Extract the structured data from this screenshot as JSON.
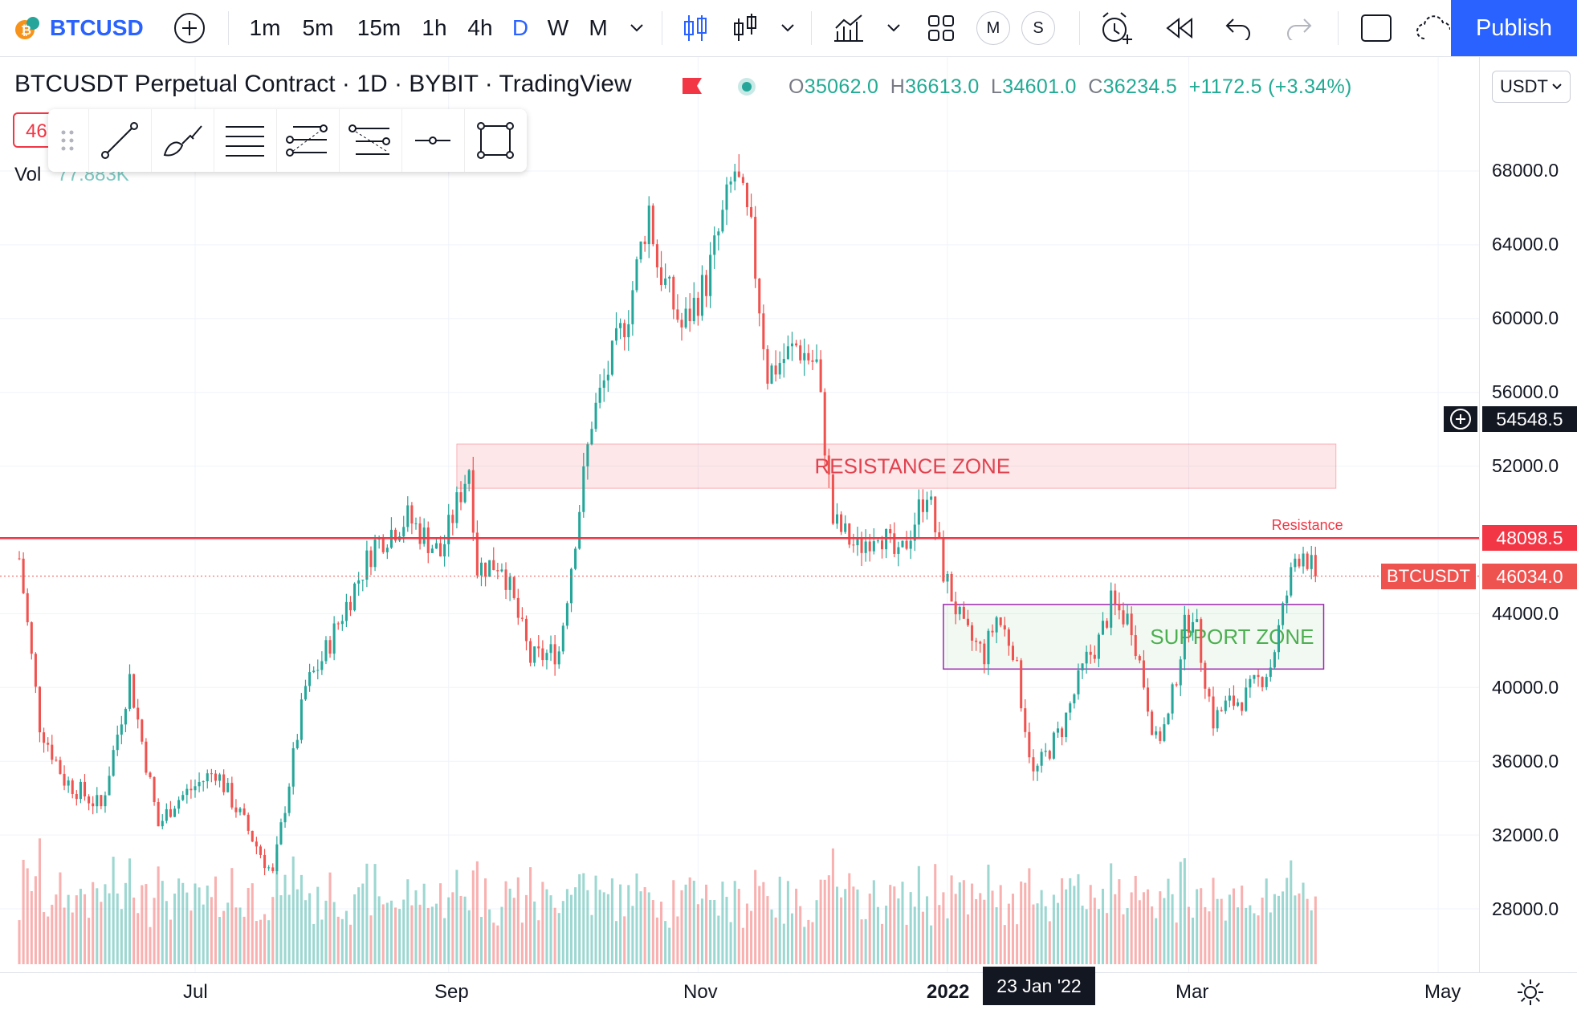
{
  "toolbar": {
    "symbol": "BTCUSD",
    "intervals": [
      "1m",
      "5m",
      "15m",
      "1h",
      "4h",
      "D",
      "W",
      "M"
    ],
    "active_interval": "D",
    "compare_m": "M",
    "compare_s": "S",
    "publish_label": "Publish"
  },
  "legend": {
    "title": "BTCUSDT Perpetual Contract · 1D · BYBIT · TradingView",
    "open_label": "O",
    "open": "35062.0",
    "high_label": "H",
    "high": "36613.0",
    "low_label": "L",
    "low": "34601.0",
    "close_label": "C",
    "close": "36234.5",
    "change": "+1172.5 (+3.34%)",
    "vol_label": "Vol",
    "vol_value": "77.883K",
    "input_value": "46"
  },
  "currency_select": "USDT",
  "price_axis": {
    "ticks": [
      "68000.0",
      "64000.0",
      "60000.0",
      "56000.0",
      "52000.0",
      "44000.0",
      "40000.0",
      "36000.0",
      "32000.0",
      "28000.0"
    ],
    "crosshair_price": "54548.5",
    "resistance_price": "48098.5",
    "last_price": "46034.0",
    "last_symbol": "BTCUSDT"
  },
  "time_axis": {
    "labels": [
      "Jul",
      "Sep",
      "Nov",
      "2022",
      "Mar",
      "May"
    ],
    "crosshair_date": "23 Jan '22"
  },
  "annotations": {
    "resistance_zone": "RESISTANCE ZONE",
    "support_zone": "SUPPORT ZONE",
    "resistance_line_label": "Resistance"
  },
  "colors": {
    "up": "#26a69a",
    "down": "#ef5350",
    "accent": "#2962ff",
    "resistance_line": "#f23645",
    "support_box": "#9c27b0"
  },
  "chart_data": {
    "type": "candlestick",
    "ylim": [
      26000,
      70000
    ],
    "keypoints": [
      [
        "2021-05-19",
        47000
      ],
      [
        "2021-05-24",
        38000
      ],
      [
        "2021-05-30",
        35000
      ],
      [
        "2021-06-08",
        33500
      ],
      [
        "2021-06-15",
        40500
      ],
      [
        "2021-06-22",
        32500
      ],
      [
        "2021-06-26",
        33800
      ],
      [
        "2021-07-06",
        35500
      ],
      [
        "2021-07-20",
        29800
      ],
      [
        "2021-07-28",
        40000
      ],
      [
        "2021-08-01",
        41500
      ],
      [
        "2021-08-07",
        44500
      ],
      [
        "2021-08-14",
        47800
      ],
      [
        "2021-08-22",
        49200
      ],
      [
        "2021-08-30",
        47200
      ],
      [
        "2021-09-06",
        52000
      ],
      [
        "2021-09-08",
        46500
      ],
      [
        "2021-09-14",
        46800
      ],
      [
        "2021-09-21",
        41500
      ],
      [
        "2021-09-28",
        42000
      ],
      [
        "2021-10-06",
        54500
      ],
      [
        "2021-10-15",
        60500
      ],
      [
        "2021-10-20",
        66000
      ],
      [
        "2021-10-22",
        63000
      ],
      [
        "2021-10-28",
        59500
      ],
      [
        "2021-11-03",
        62000
      ],
      [
        "2021-11-10",
        68000
      ],
      [
        "2021-11-14",
        64500
      ],
      [
        "2021-11-18",
        57000
      ],
      [
        "2021-11-25",
        58500
      ],
      [
        "2021-11-30",
        57500
      ],
      [
        "2021-12-04",
        49000
      ],
      [
        "2021-12-10",
        47500
      ],
      [
        "2021-12-15",
        48700
      ],
      [
        "2021-12-20",
        46800
      ],
      [
        "2021-12-27",
        50800
      ],
      [
        "2021-12-31",
        46300
      ],
      [
        "2022-01-05",
        43000
      ],
      [
        "2022-01-10",
        41800
      ],
      [
        "2022-01-13",
        43800
      ],
      [
        "2022-01-17",
        42200
      ],
      [
        "2022-01-22",
        35200
      ],
      [
        "2022-01-29",
        37800
      ],
      [
        "2022-02-04",
        41500
      ],
      [
        "2022-02-07",
        42500
      ],
      [
        "2022-02-10",
        44500
      ],
      [
        "2022-02-15",
        43500
      ],
      [
        "2022-02-21",
        37000
      ],
      [
        "2022-02-24",
        38300
      ],
      [
        "2022-02-28",
        43200
      ],
      [
        "2022-03-02",
        44200
      ],
      [
        "2022-03-07",
        38200
      ],
      [
        "2022-03-10",
        39000
      ],
      [
        "2022-03-15",
        39500
      ],
      [
        "2022-03-21",
        41200
      ],
      [
        "2022-03-27",
        47000
      ],
      [
        "2022-03-29",
        47500
      ],
      [
        "2022-04-01",
        46034
      ]
    ],
    "resistance_zone": [
      50800,
      53200
    ],
    "support_zone": [
      41000,
      44500
    ],
    "resistance_line": 48098.5,
    "last": 46034.0
  }
}
